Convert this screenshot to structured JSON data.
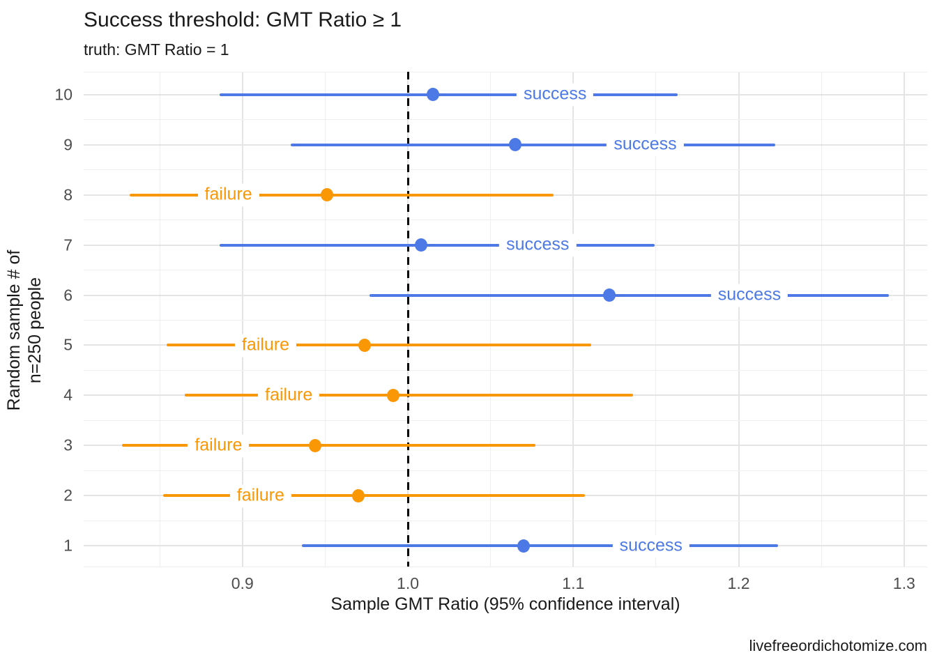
{
  "chart_data": {
    "type": "scatter",
    "subtype": "point-interval (horizontal 95% CI error bars)",
    "title": "Success threshold: GMT Ratio ≥ 1",
    "subtitle": "truth: GMT Ratio = 1",
    "xlabel": "Sample GMT Ratio (95% confidence interval)",
    "ylabel_line1": "Random sample # of",
    "ylabel_line2": "n=250 people",
    "caption": "livefreeordichotomize.com",
    "xlim": [
      0.804,
      1.314
    ],
    "x_major_ticks": [
      0.9,
      1.0,
      1.1,
      1.2,
      1.3
    ],
    "x_tick_labels": [
      "0.9",
      "1.0",
      "1.1",
      "1.2",
      "1.3"
    ],
    "x_minor_ticks": [
      0.85,
      0.95,
      1.05,
      1.15,
      1.25
    ],
    "y_categories": [
      "1",
      "2",
      "3",
      "4",
      "5",
      "6",
      "7",
      "8",
      "9",
      "10"
    ],
    "reference_line": {
      "x": 1.0,
      "style": "dashed",
      "color": "#000000"
    },
    "colors": {
      "success": "#4c79e6",
      "failure": "#fa9705"
    },
    "grid": "on",
    "legend": "none",
    "series": [
      {
        "sample": 1,
        "estimate": 1.07,
        "ci_low": 0.936,
        "ci_high": 1.224,
        "outcome": "success"
      },
      {
        "sample": 2,
        "estimate": 0.97,
        "ci_low": 0.852,
        "ci_high": 1.107,
        "outcome": "failure"
      },
      {
        "sample": 3,
        "estimate": 0.944,
        "ci_low": 0.827,
        "ci_high": 1.077,
        "outcome": "failure"
      },
      {
        "sample": 4,
        "estimate": 0.991,
        "ci_low": 0.865,
        "ci_high": 1.136,
        "outcome": "failure"
      },
      {
        "sample": 5,
        "estimate": 0.974,
        "ci_low": 0.854,
        "ci_high": 1.111,
        "outcome": "failure"
      },
      {
        "sample": 6,
        "estimate": 1.122,
        "ci_low": 0.977,
        "ci_high": 1.291,
        "outcome": "success"
      },
      {
        "sample": 7,
        "estimate": 1.008,
        "ci_low": 0.886,
        "ci_high": 1.149,
        "outcome": "success"
      },
      {
        "sample": 8,
        "estimate": 0.951,
        "ci_low": 0.832,
        "ci_high": 1.088,
        "outcome": "failure"
      },
      {
        "sample": 9,
        "estimate": 1.065,
        "ci_low": 0.929,
        "ci_high": 1.222,
        "outcome": "success"
      },
      {
        "sample": 10,
        "estimate": 1.015,
        "ci_low": 0.886,
        "ci_high": 1.163,
        "outcome": "success"
      }
    ]
  }
}
